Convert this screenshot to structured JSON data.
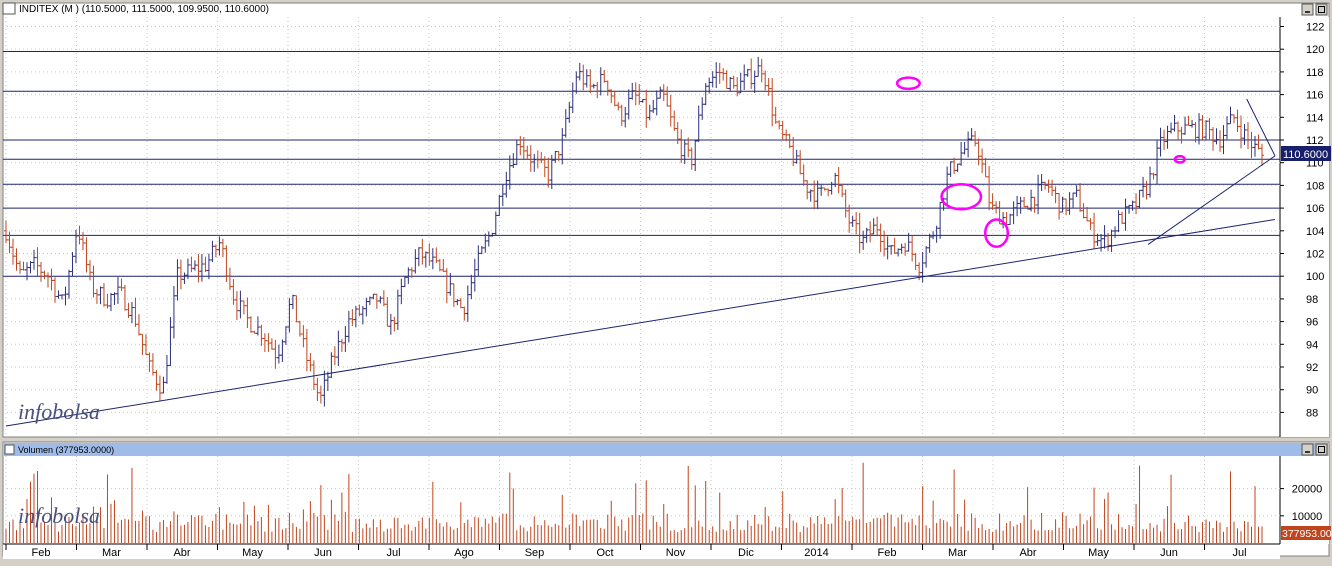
{
  "price_panel": {
    "title": "INDITEX (M ) (110.5000, 111.5000, 109.9500, 110.6000)",
    "last_value_label": "110.6000"
  },
  "volume_panel": {
    "title": "Volumen (377953.0000)",
    "last_value_label": "377953.00"
  },
  "watermark": "infobolsa",
  "colors": {
    "up_bar": "#2b2f7a",
    "down_bar": "#c0441c",
    "trendline": "#1c2470",
    "annotation": "#ff00ff",
    "panel_bg": "#ffffff",
    "grid": "#c8c8c8",
    "title_bar": "#9fbbe8"
  },
  "chart_data": [
    {
      "type": "ohlc",
      "title": "INDITEX (M ) (110.5000, 111.5000, 109.9500, 110.6000)",
      "ylim": [
        86,
        122
      ],
      "y_ticks": [
        88,
        90,
        92,
        94,
        96,
        98,
        100,
        102,
        104,
        106,
        108,
        110,
        112,
        114,
        116,
        118,
        120,
        122
      ],
      "x_tick_labels": [
        "Feb",
        "Mar",
        "Abr",
        "May",
        "Jun",
        "Jul",
        "Ago",
        "Sep",
        "Oct",
        "Nov",
        "Dic",
        "2014",
        "Feb",
        "Mar",
        "Abr",
        "May",
        "Jun",
        "Jul"
      ],
      "horizontal_levels": [
        100,
        103.6,
        106,
        108.1,
        110.3,
        112,
        116.3,
        119.8
      ],
      "x_months": [
        0,
        1,
        2,
        3,
        4,
        5,
        6,
        7,
        8,
        9,
        10,
        11,
        12,
        13,
        14,
        15,
        16,
        17,
        18
      ],
      "close_path": [
        104,
        100,
        101,
        100,
        97.5,
        104.5,
        99,
        98,
        98.5,
        96.5,
        92,
        90,
        100,
        100.5,
        101,
        103,
        98,
        96,
        95,
        93,
        98,
        93,
        89,
        93,
        96,
        97,
        98,
        95.5,
        100,
        102,
        101,
        99,
        97,
        101,
        104,
        109,
        112,
        110,
        109,
        112,
        118,
        116.5,
        117.5,
        114,
        116,
        114,
        116,
        112,
        110,
        117,
        118,
        116.5,
        117.5,
        118.5,
        113,
        111,
        108,
        107,
        109,
        105,
        103,
        104.5,
        102,
        103,
        101,
        104,
        109,
        111,
        112,
        106,
        105,
        106,
        107,
        108,
        106,
        107,
        104,
        103,
        105,
        106,
        108,
        112,
        113,
        113,
        113,
        112,
        114,
        112,
        110.6
      ],
      "trendlines": [
        [
          0,
          86.8,
          18,
          105
        ],
        [
          16.2,
          102.8,
          18,
          110.6
        ],
        [
          17.6,
          115.6,
          18,
          110.6
        ]
      ],
      "annotations": [
        {
          "shape": "ellipse",
          "x": 12.8,
          "y": 117,
          "rx": 0.16,
          "ry": 0.5
        },
        {
          "shape": "ellipse",
          "x": 13.55,
          "y": 107,
          "rx": 0.28,
          "ry": 1.1
        },
        {
          "shape": "ellipse",
          "x": 14.05,
          "y": 103.8,
          "rx": 0.16,
          "ry": 1.2
        },
        {
          "shape": "ellipse",
          "x": 16.65,
          "y": 110.3,
          "rx": 0.07,
          "ry": 0.28
        }
      ]
    },
    {
      "type": "bar",
      "title": "Volumen (377953.0000)",
      "ylim": [
        0,
        30000
      ],
      "y_ticks": [
        10000,
        20000
      ],
      "y_tick_labels": [
        "10000",
        "20000"
      ],
      "last_value_label": "377953.00"
    }
  ]
}
